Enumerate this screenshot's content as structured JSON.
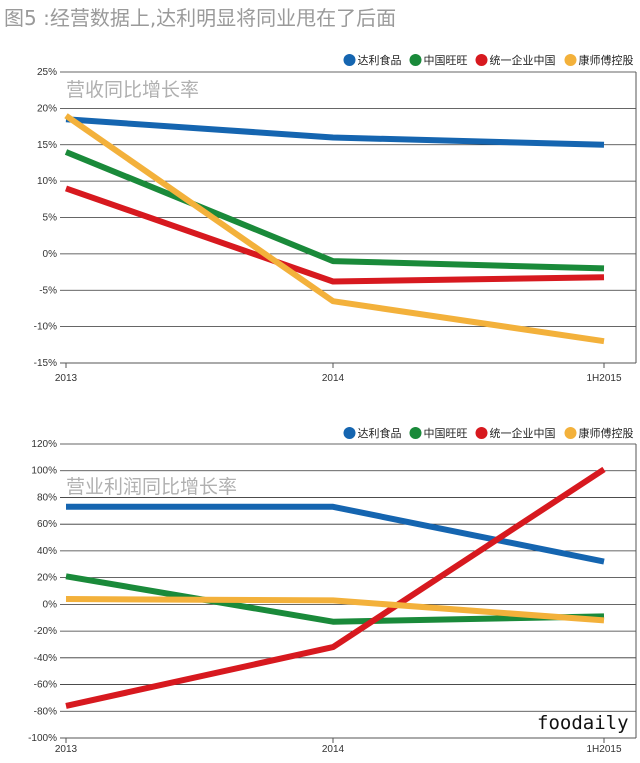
{
  "title": "图5 :经营数据上,达利明显将同业甩在了后面",
  "watermark": "foodaily",
  "colors": {
    "达利食品": "#1565b0",
    "中国旺旺": "#1a8a3a",
    "统一企业中国": "#d7191f",
    "康师傅控股": "#f3b13b"
  },
  "chart_data": [
    {
      "type": "line",
      "title": "营收同比增长率",
      "categories": [
        "2013",
        "2014",
        "1H2015"
      ],
      "yticks": [
        "25%",
        "20%",
        "15%",
        "10%",
        "5%",
        "0%",
        "-5%",
        "-10%",
        "-15%"
      ],
      "ylim": [
        -15,
        25
      ],
      "legend_position": "top-right",
      "series": [
        {
          "name": "达利食品",
          "values": [
            18.5,
            16,
            15
          ]
        },
        {
          "name": "中国旺旺",
          "values": [
            14,
            -1,
            -2
          ]
        },
        {
          "name": "统一企业中国",
          "values": [
            9,
            -3.8,
            -3.2
          ]
        },
        {
          "name": "康师傅控股",
          "values": [
            19,
            -6.5,
            -12
          ]
        }
      ]
    },
    {
      "type": "line",
      "title": "营业利润同比增长率",
      "categories": [
        "2013",
        "2014",
        "1H2015"
      ],
      "yticks": [
        "120%",
        "100%",
        "80%",
        "60%",
        "40%",
        "20%",
        "0%",
        "-20%",
        "-40%",
        "-60%",
        "-80%",
        "-100%"
      ],
      "ylim": [
        -100,
        120
      ],
      "legend_position": "top-right",
      "series": [
        {
          "name": "达利食品",
          "values": [
            73,
            73,
            32
          ]
        },
        {
          "name": "中国旺旺",
          "values": [
            21,
            -13,
            -9
          ]
        },
        {
          "name": "统一企业中国",
          "values": [
            -76,
            -32,
            101
          ]
        },
        {
          "name": "康师傅控股",
          "values": [
            4,
            3,
            -12
          ]
        }
      ]
    }
  ]
}
